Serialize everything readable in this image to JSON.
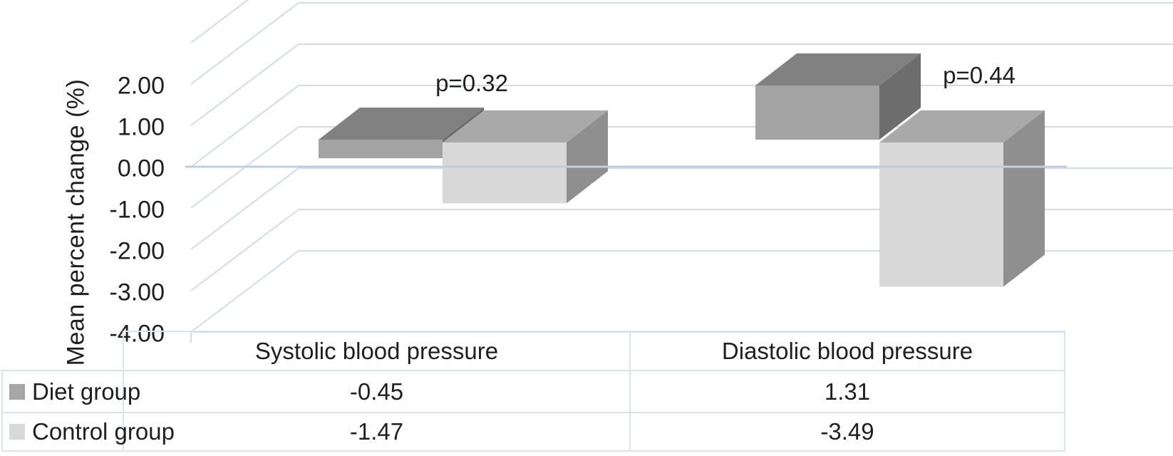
{
  "chart_data": {
    "type": "bar",
    "style": "3d-clustered-column",
    "title": "",
    "xlabel": "",
    "categories": [
      "Systolic blood pressure",
      "Diastolic blood pressure"
    ],
    "series": [
      {
        "name": "Diet group",
        "values": [
          -0.45,
          1.31
        ],
        "swatch_color": "#a6a6a6",
        "face_colors": {
          "front": "#a3a3a3",
          "top": "#818181",
          "side": "#6d6d6d"
        }
      },
      {
        "name": "Control group",
        "values": [
          -1.47,
          -3.49
        ],
        "swatch_color": "#d9d9d9",
        "face_colors": {
          "front": "#d8d8d8",
          "top": "#a9a9a9",
          "side": "#8f8f8f"
        }
      }
    ],
    "annotations": [
      {
        "text": "p=0.32",
        "category": "Systolic blood pressure"
      },
      {
        "text": "p=0.44",
        "category": "Diastolic blood pressure"
      }
    ],
    "y_axis": {
      "label": "Mean percent change (%)",
      "ticks": [
        {
          "label": "2.00",
          "value": 2
        },
        {
          "label": "1.00",
          "value": 1
        },
        {
          "label": "0.00",
          "value": 0
        },
        {
          "label": "-1.00",
          "value": -1
        },
        {
          "label": "-2.00",
          "value": -2
        },
        {
          "label": "-3.00",
          "value": -3
        },
        {
          "label": "-4.00",
          "value": -4
        }
      ],
      "min": -4,
      "max": 2,
      "gridlines": true
    },
    "legend_position": "table-left",
    "data_table": {
      "col_headers": [
        "Systolic blood pressure",
        "Diastolic blood pressure"
      ],
      "rows": [
        {
          "label": "Diet group",
          "values": [
            "-0.45",
            "1.31"
          ]
        },
        {
          "label": "Control group",
          "values": [
            "-1.47",
            "-3.49"
          ]
        }
      ]
    },
    "colors": {
      "gridline": "#d3dbe9",
      "zero_line": "#c3cde0",
      "table_border": "#dce3ef",
      "text": "#1f1f1f",
      "background": "#ffffff"
    }
  }
}
